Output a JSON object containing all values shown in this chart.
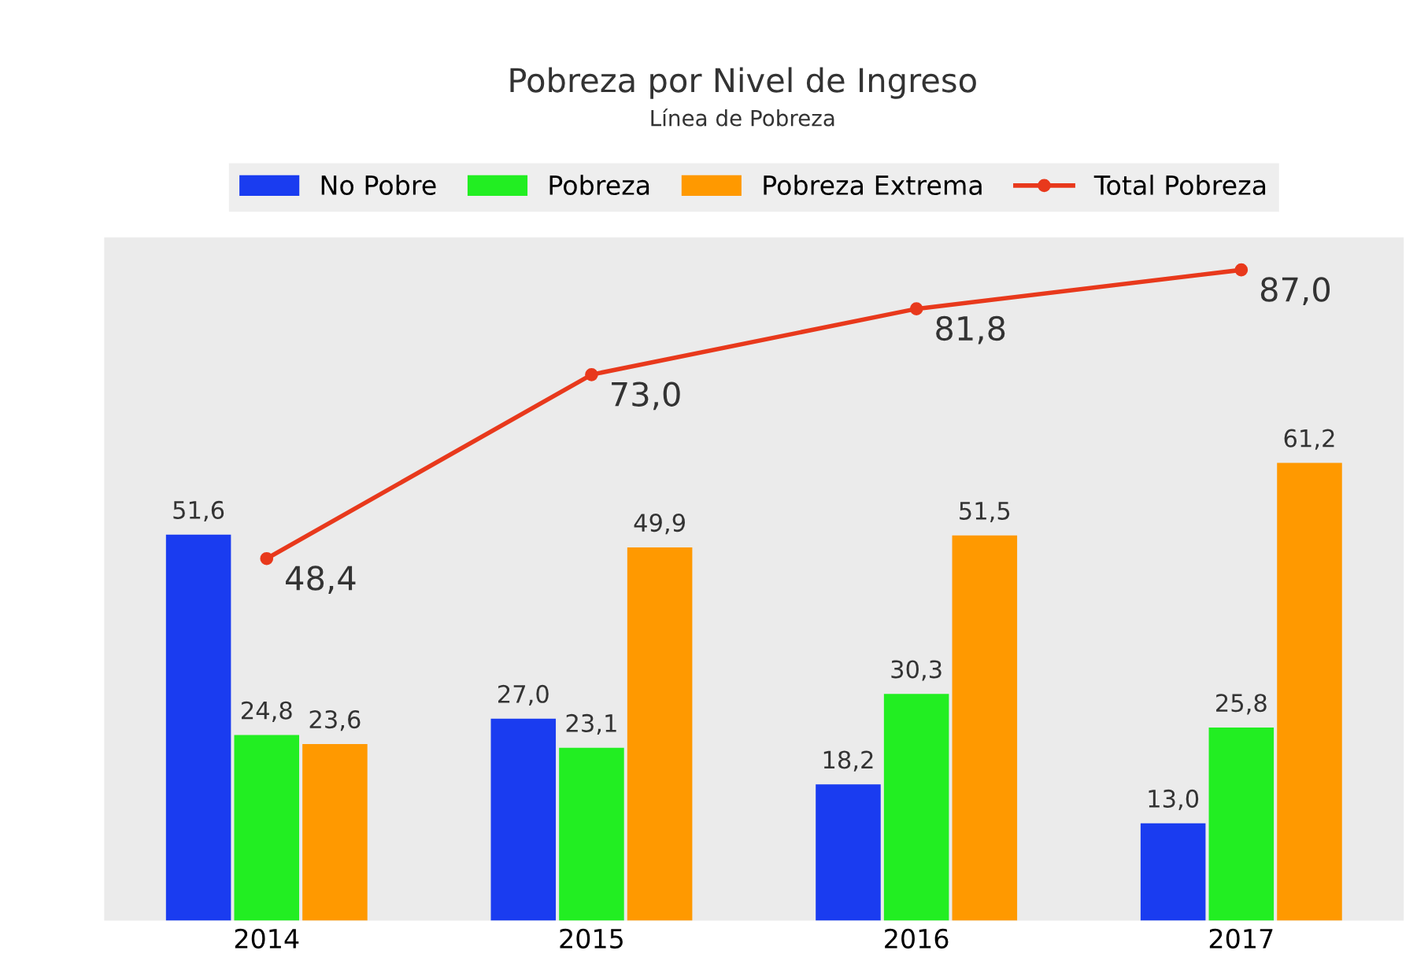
{
  "chart_data": {
    "type": "bar",
    "title": "Pobreza por Nivel de Ingreso",
    "subtitle": "Línea de Pobreza",
    "categories": [
      "2014",
      "2015",
      "2016",
      "2017"
    ],
    "series": [
      {
        "name": "No Pobre",
        "color": "#1a3cf0",
        "values": [
          51.6,
          27.0,
          18.2,
          13.0
        ],
        "value_labels": [
          "51,6",
          "27,0",
          "18,2",
          "13,0"
        ]
      },
      {
        "name": "Pobreza",
        "color": "#22ee22",
        "values": [
          24.8,
          23.1,
          30.3,
          25.8
        ],
        "value_labels": [
          "24,8",
          "23,1",
          "30,3",
          "25,8"
        ]
      },
      {
        "name": "Pobreza Extrema",
        "color": "#ff9900",
        "values": [
          23.6,
          49.9,
          51.5,
          61.2
        ],
        "value_labels": [
          "23,6",
          "49,9",
          "51,5",
          "61,2"
        ]
      },
      {
        "name": "Total Pobreza",
        "type": "line",
        "color": "#e8391c",
        "marker": "circle",
        "values": [
          48.4,
          73.0,
          81.8,
          87.0
        ],
        "value_labels": [
          "48,4",
          "73,0",
          "81,8",
          "87,0"
        ]
      }
    ],
    "tick_labels": "x",
    "grid": false,
    "legend": "top"
  }
}
